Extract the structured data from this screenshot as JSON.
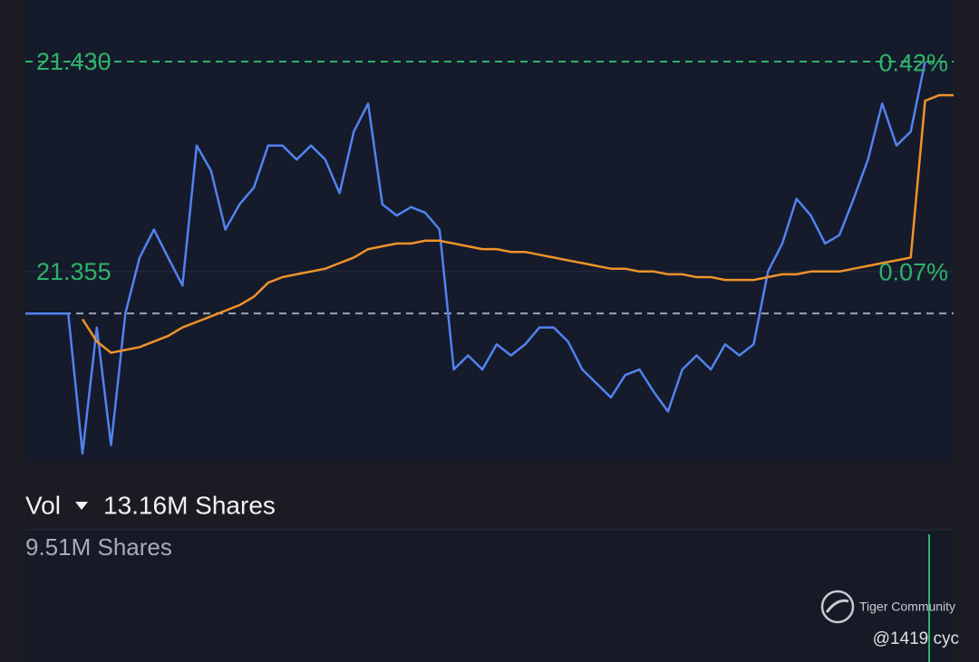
{
  "chart_data": {
    "type": "line",
    "ylim": [
      21.287,
      21.452
    ],
    "yticks": [
      {
        "value": 21.43,
        "label": "21.430"
      },
      {
        "value": 21.355,
        "label": "21.355"
      }
    ],
    "y2lim": [
      -0.248,
      0.525
    ],
    "y2ticks": [
      {
        "value": 0.42,
        "label": "0.42%"
      },
      {
        "value": 0.07,
        "label": "0.07%"
      }
    ],
    "baseline": 21.34,
    "xlim": [
      0,
      65
    ],
    "series": [
      {
        "color": "#5282f0",
        "values": [
          21.34,
          21.34,
          21.34,
          21.34,
          21.29,
          21.335,
          21.293,
          21.34,
          21.36,
          21.37,
          21.36,
          21.35,
          21.4,
          21.391,
          21.37,
          21.379,
          21.385,
          21.4,
          21.4,
          21.395,
          21.4,
          21.395,
          21.383,
          21.405,
          21.415,
          21.379,
          21.375,
          21.378,
          21.376,
          21.37,
          21.32,
          21.325,
          21.32,
          21.329,
          21.325,
          21.329,
          21.335,
          21.335,
          21.33,
          21.32,
          21.315,
          21.31,
          21.318,
          21.32,
          21.312,
          21.305,
          21.32,
          21.325,
          21.32,
          21.329,
          21.325,
          21.329,
          21.355,
          21.365,
          21.381,
          21.375,
          21.365,
          21.368,
          21.381,
          21.395,
          21.415,
          21.4,
          21.405,
          21.43,
          null,
          null
        ]
      },
      {
        "color": "#f0922b",
        "values": [
          null,
          null,
          null,
          null,
          21.338,
          21.33,
          21.326,
          21.327,
          21.328,
          21.33,
          21.332,
          21.335,
          21.337,
          21.339,
          21.341,
          21.343,
          21.346,
          21.351,
          21.353,
          21.354,
          21.355,
          21.356,
          21.358,
          21.36,
          21.363,
          21.364,
          21.365,
          21.365,
          21.366,
          21.366,
          21.365,
          21.364,
          21.363,
          21.363,
          21.362,
          21.362,
          21.361,
          21.36,
          21.359,
          21.358,
          21.357,
          21.356,
          21.356,
          21.355,
          21.355,
          21.354,
          21.354,
          21.353,
          21.353,
          21.352,
          21.352,
          21.352,
          21.353,
          21.354,
          21.354,
          21.355,
          21.355,
          21.355,
          21.356,
          21.357,
          21.358,
          21.359,
          21.36,
          21.416,
          21.418,
          21.418
        ]
      }
    ]
  },
  "volume": {
    "label": "Vol",
    "total": "13.16M Shares",
    "axis_max": "9.51M Shares"
  },
  "watermark": {
    "brand": "Tiger Community",
    "user": "@1419 cyc"
  }
}
